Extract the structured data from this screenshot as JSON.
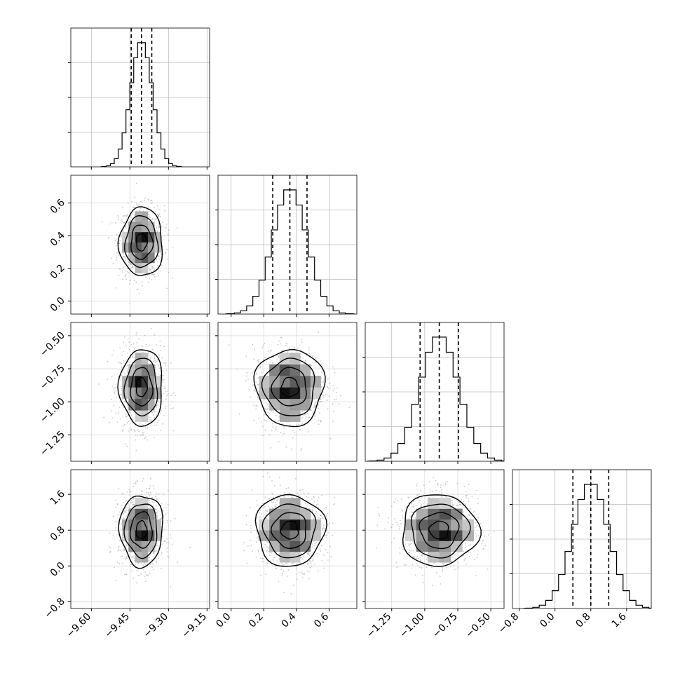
{
  "chart_data": {
    "type": "corner",
    "parameters": [
      {
        "mean": -9.405,
        "sd": 0.042,
        "range": [
          -9.68,
          -9.14
        ],
        "ticks": [
          -9.6,
          -9.45,
          -9.3,
          -9.15
        ],
        "tick_labels": [
          "−9.60",
          "−9.45",
          "−9.30",
          "−9.15"
        ],
        "quantiles": [
          -9.445,
          -9.405,
          -9.365
        ]
      },
      {
        "mean": 0.36,
        "sd": 0.105,
        "range": [
          -0.08,
          0.77
        ],
        "ticks": [
          0.0,
          0.2,
          0.4,
          0.6
        ],
        "tick_labels": [
          "0.0",
          "0.2",
          "0.4",
          "0.6"
        ],
        "quantiles": [
          0.255,
          0.36,
          0.465
        ]
      },
      {
        "mean": -0.89,
        "sd": 0.145,
        "range": [
          -1.45,
          -0.4
        ],
        "ticks": [
          -1.25,
          -1.0,
          -0.75,
          -0.5
        ],
        "tick_labels": [
          "−1.25",
          "−1.00",
          "−0.75",
          "−0.50"
        ],
        "quantiles": [
          -1.035,
          -0.89,
          -0.745
        ]
      },
      {
        "mean": 0.8,
        "sd": 0.4,
        "range": [
          -0.95,
          2.15
        ],
        "ticks": [
          -0.8,
          0.0,
          0.8,
          1.6
        ],
        "tick_labels": [
          "−0.8",
          "0.0",
          "0.8",
          "1.6"
        ],
        "quantiles": [
          0.4,
          0.8,
          1.2
        ]
      }
    ],
    "histogram_bins": 20,
    "quantile_style": "dashed",
    "contours": "density levels with 2D histogram shading",
    "grid": true
  }
}
